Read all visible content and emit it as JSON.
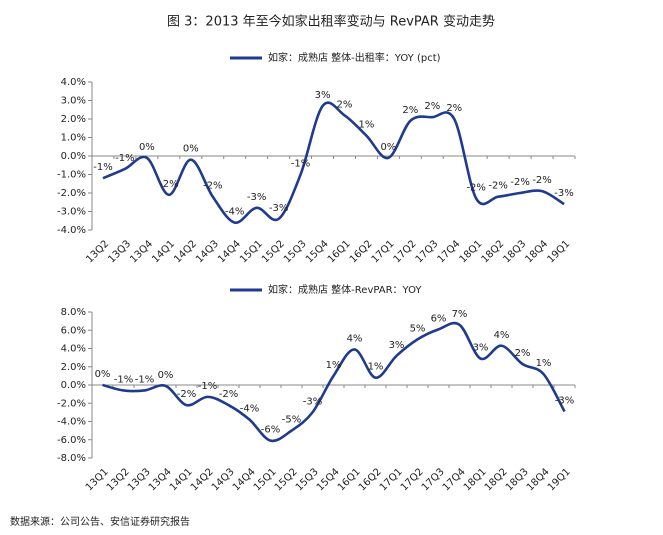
{
  "title": "图 3：2013 年至今如家出租率变动与 RevPAR 变动走势",
  "source": "数据来源：公司公告、安信证券研究报告",
  "chart_data": [
    {
      "type": "line",
      "categories": [
        "13Q2",
        "13Q3",
        "13Q4",
        "14Q1",
        "14Q2",
        "14Q3",
        "14Q4",
        "15Q1",
        "15Q2",
        "15Q3",
        "15Q4",
        "16Q1",
        "16Q2",
        "17Q1",
        "17Q2",
        "17Q3",
        "17Q4",
        "18Q1",
        "18Q2",
        "18Q3",
        "18Q4",
        "19Q1"
      ],
      "series": [
        {
          "name": "如家：成熟店 整体-出租率：YOY (pct)",
          "color": "#1f3a8f",
          "values": [
            -1.2,
            -0.7,
            -0.1,
            -2.1,
            -0.2,
            -2.2,
            -3.6,
            -2.8,
            -3.4,
            -1.0,
            2.7,
            2.2,
            1.1,
            -0.1,
            1.9,
            2.1,
            2.0,
            -2.3,
            -2.2,
            -2.0,
            -1.9,
            -2.6
          ],
          "value_labels": [
            "-1%",
            "-1%",
            "0%",
            "-2%",
            "0%",
            "-2%",
            "-4%",
            "-3%",
            "-3%",
            "-1%",
            "3%",
            "2%",
            "1%",
            "0%",
            "2%",
            "2%",
            "2%",
            "-2%",
            "-2%",
            "-2%",
            "-2%",
            "-3%"
          ]
        }
      ],
      "ylim": [
        -4,
        4
      ],
      "yticks": [
        {
          "value": 4,
          "label": "4.0%"
        },
        {
          "value": 3,
          "label": "3.0%"
        },
        {
          "value": 2,
          "label": "2.0%"
        },
        {
          "value": 1,
          "label": "1.0%"
        },
        {
          "value": 0,
          "label": "0.0%"
        },
        {
          "value": -1,
          "label": "-1.0%"
        },
        {
          "value": -2,
          "label": "-2.0%"
        },
        {
          "value": -3,
          "label": "-3.0%"
        },
        {
          "value": -4,
          "label": "-4.0%"
        }
      ]
    },
    {
      "type": "line",
      "categories": [
        "13Q1",
        "13Q2",
        "13Q3",
        "13Q4",
        "14Q1",
        "14Q2",
        "14Q3",
        "14Q4",
        "15Q1",
        "15Q2",
        "15Q3",
        "15Q4",
        "16Q1",
        "16Q2",
        "17Q1",
        "17Q2",
        "17Q3",
        "17Q4",
        "18Q1",
        "18Q2",
        "18Q3",
        "18Q4",
        "19Q1"
      ],
      "series": [
        {
          "name": "如家：成熟店 整体-RevPAR：YOY",
          "color": "#1f3a8f",
          "values": [
            0.0,
            -0.6,
            -0.6,
            -0.1,
            -2.2,
            -1.3,
            -2.2,
            -3.8,
            -6.1,
            -5.0,
            -3.0,
            1.0,
            3.9,
            0.8,
            3.2,
            5.0,
            6.1,
            6.6,
            2.9,
            4.3,
            2.3,
            1.2,
            -2.9
          ],
          "value_labels": [
            "0%",
            "-1%",
            "-1%",
            "0%",
            "-2%",
            "-1%",
            "-2%",
            "-4%",
            "-6%",
            "-5%",
            "-3%",
            "1%",
            "4%",
            "1%",
            "3%",
            "5%",
            "6%",
            "7%",
            "3%",
            "4%",
            "2%",
            "1%",
            "-3%"
          ]
        }
      ],
      "ylim": [
        -8,
        8
      ],
      "yticks": [
        {
          "value": 8,
          "label": "8.0%"
        },
        {
          "value": 6,
          "label": "6.0%"
        },
        {
          "value": 4,
          "label": "4.0%"
        },
        {
          "value": 2,
          "label": "2.0%"
        },
        {
          "value": 0,
          "label": "0.0%"
        },
        {
          "value": -2,
          "label": "-2.0%"
        },
        {
          "value": -4,
          "label": "-4.0%"
        },
        {
          "value": -6,
          "label": "-6.0%"
        },
        {
          "value": -8,
          "label": "-8.0%"
        }
      ]
    }
  ]
}
